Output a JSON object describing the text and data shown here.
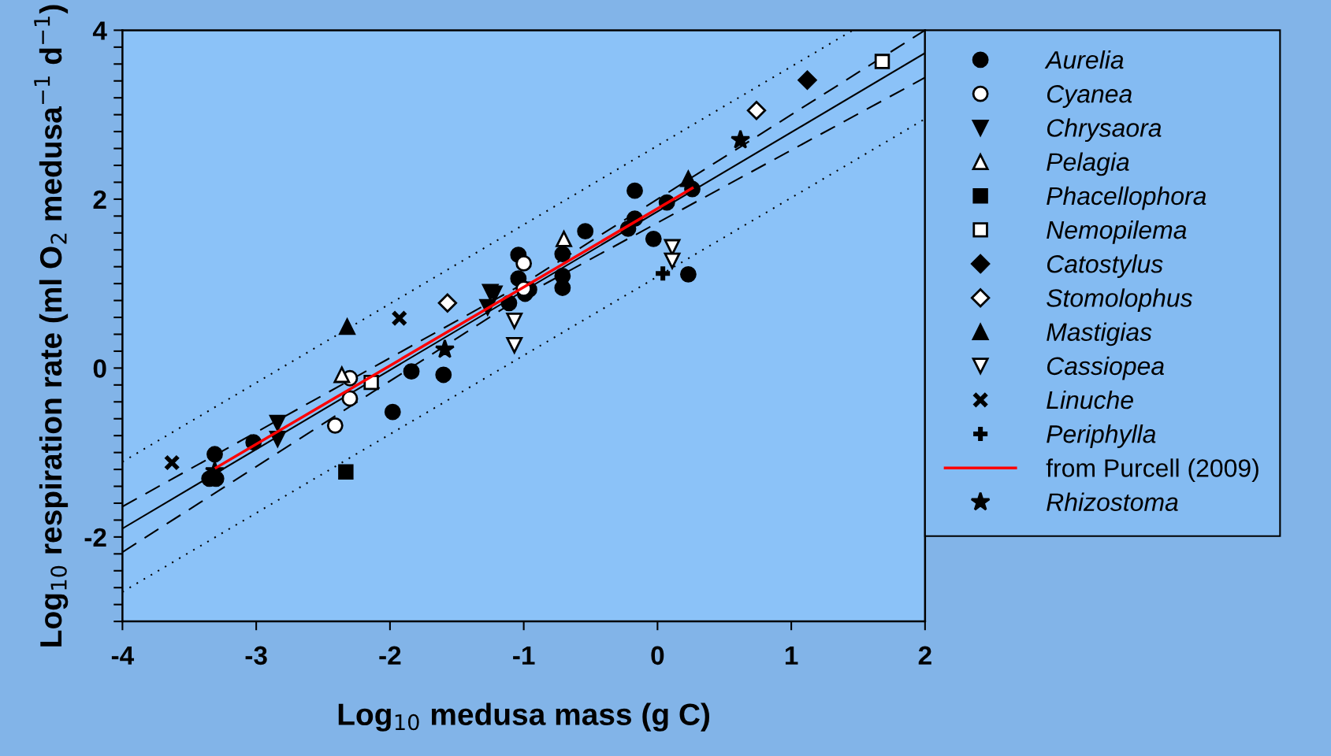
{
  "chart_data": {
    "type": "scatter",
    "xlabel": "Log$_{10}$ medusa mass (g C)",
    "ylabel": "Log$_{10}$ respiration rate (ml O$_{2}$ medusa$^{−1}$ d$^{−1}$)",
    "xlim": [
      -4,
      2
    ],
    "xticks": [
      -4,
      -3,
      -2,
      -1,
      0,
      1,
      2
    ],
    "ylim": [
      -3,
      4
    ],
    "yticks": [
      {
        "value": -3.0,
        "label": null
      },
      {
        "value": -2.8,
        "label": null
      },
      {
        "value": -2.6,
        "label": null
      },
      {
        "value": -2.4,
        "label": null
      },
      {
        "value": -2.2,
        "label": null
      },
      -2,
      {
        "value": -1.8,
        "label": null
      },
      {
        "value": -1.6,
        "label": null
      },
      {
        "value": -1.4,
        "label": null
      },
      {
        "value": -1.2,
        "label": null
      },
      {
        "value": -1.0,
        "label": null
      },
      {
        "value": -0.8,
        "label": null
      },
      {
        "value": -0.6,
        "label": null
      },
      {
        "value": -0.4,
        "label": null
      },
      {
        "value": -0.2,
        "label": null
      },
      0,
      {
        "value": 0.2,
        "label": null
      },
      {
        "value": 0.4,
        "label": null
      },
      {
        "value": 0.6,
        "label": null
      },
      {
        "value": 0.8,
        "label": null
      },
      {
        "value": 1.0,
        "label": null
      },
      {
        "value": 1.2,
        "label": null
      },
      {
        "value": 1.4,
        "label": null
      },
      {
        "value": 1.6,
        "label": null
      },
      {
        "value": 1.8,
        "label": null
      },
      2,
      {
        "value": 2.2,
        "label": null
      },
      {
        "value": 2.4,
        "label": null
      },
      {
        "value": 2.6,
        "label": null
      },
      {
        "value": 2.8,
        "label": null
      },
      {
        "value": 3.0,
        "label": null
      },
      {
        "value": 3.2,
        "label": null
      },
      {
        "value": 3.4,
        "label": null
      },
      {
        "value": 3.6,
        "label": null
      },
      {
        "value": 3.8,
        "label": null
      },
      4
    ],
    "grid": false,
    "legend": "right",
    "series": [
      {
        "type": "line",
        "color": "#000000",
        "line_style": "dotted",
        "marker": "none",
        "x": [
          -4,
          1.46
        ],
        "values": [
          -1.11,
          4.0
        ]
      },
      {
        "type": "line",
        "color": "#000000",
        "line_style": "dashed",
        "marker": "none",
        "x": [
          -4,
          -1,
          2
        ],
        "values": [
          -1.64,
          1.0,
          4.0
        ]
      },
      {
        "type": "line",
        "color": "#000000",
        "line_style": "solid",
        "marker": "none",
        "x": [
          -4,
          2
        ],
        "values": [
          -1.9,
          3.73
        ]
      },
      {
        "type": "line",
        "color": "#000000",
        "line_style": "dashed",
        "marker": "none",
        "x": [
          -4,
          -1,
          2
        ],
        "values": [
          -2.18,
          0.86,
          3.44
        ]
      },
      {
        "type": "line",
        "color": "#000000",
        "line_style": "dotted",
        "marker": "none",
        "x": [
          -4,
          2
        ],
        "values": [
          -2.65,
          2.95
        ]
      },
      {
        "name": "Aurelia",
        "marker": "circle",
        "color": "#000000",
        "x": [
          -3.31,
          -3.35,
          -3.3,
          -3.02,
          -1.98,
          -1.84,
          -1.6,
          -1.11,
          -1.04,
          -1.04,
          -0.99,
          -0.96,
          -0.71,
          -0.71,
          -0.71,
          -0.54,
          -0.22,
          -0.17,
          -0.17,
          -0.03,
          0.07,
          0.26,
          0.23
        ],
        "values": [
          -1.02,
          -1.31,
          -1.31,
          -0.88,
          -0.52,
          -0.04,
          -0.08,
          0.77,
          1.34,
          1.06,
          0.88,
          0.93,
          1.35,
          1.09,
          0.95,
          1.62,
          1.65,
          2.1,
          1.77,
          1.53,
          1.96,
          2.12,
          1.11
        ]
      },
      {
        "name": "Cyanea",
        "marker": "circle",
        "color": "#ffffff",
        "x": [
          -2.41,
          -2.3,
          -2.3,
          -1.0,
          -1.0
        ],
        "values": [
          -0.68,
          -0.36,
          -0.12,
          1.24,
          0.94
        ]
      },
      {
        "name": "Chrysaora",
        "marker": "triangle_down",
        "color": "#000000",
        "x": [
          -2.84,
          -2.84,
          -1.25,
          -1.27,
          -1.22
        ],
        "values": [
          -0.65,
          -0.84,
          0.9,
          0.72,
          0.88
        ]
      },
      {
        "name": "Pelagia",
        "marker": "triangle",
        "color": "#ffffff",
        "x": [
          -2.36,
          -0.7
        ],
        "values": [
          -0.08,
          1.53
        ]
      },
      {
        "name": "Phacellophora",
        "marker": "square",
        "color": "#000000",
        "x": [
          -2.33
        ],
        "values": [
          -1.23
        ]
      },
      {
        "name": "Nemopilema",
        "marker": "square",
        "color": "#ffffff",
        "x": [
          -2.14,
          1.68
        ],
        "values": [
          -0.17,
          3.63
        ]
      },
      {
        "name": "Catostylus",
        "marker": "diamond",
        "color": "#000000",
        "x": [
          1.12
        ],
        "values": [
          3.41
        ]
      },
      {
        "name": "Stomolophus",
        "marker": "diamond",
        "color": "#ffffff",
        "x": [
          -1.57,
          0.74
        ],
        "values": [
          0.77,
          3.05
        ]
      },
      {
        "name": "Mastigias",
        "marker": "triangle",
        "color": "#000000",
        "x": [
          -2.32,
          0.23
        ],
        "values": [
          0.49,
          2.24
        ]
      },
      {
        "name": "Cassiopea",
        "marker": "triangle_down",
        "color": "#ffffff",
        "x": [
          -1.07,
          -1.07,
          0.11,
          0.11
        ],
        "values": [
          0.56,
          0.27,
          1.43,
          1.27
        ]
      },
      {
        "name": "Linuche",
        "marker": "cross",
        "color": "#000000",
        "x": [
          -3.63,
          -1.93
        ],
        "values": [
          -1.12,
          0.59
        ]
      },
      {
        "name": "Periphylla",
        "marker": "plus",
        "color": "#000000",
        "x": [
          0.04
        ],
        "values": [
          1.12
        ]
      },
      {
        "name": "from Purcell (2009)",
        "type": "line",
        "color": "#ff0000",
        "line_style": "solid",
        "marker": "none",
        "x": [
          -3.3,
          0.26
        ],
        "values": [
          -1.18,
          2.13
        ]
      },
      {
        "name": "Rhizostoma",
        "marker": "star",
        "color": "#000000",
        "x": [
          -3.31,
          -1.59,
          0.62
        ],
        "values": [
          -1.22,
          0.22,
          2.7
        ]
      }
    ]
  }
}
